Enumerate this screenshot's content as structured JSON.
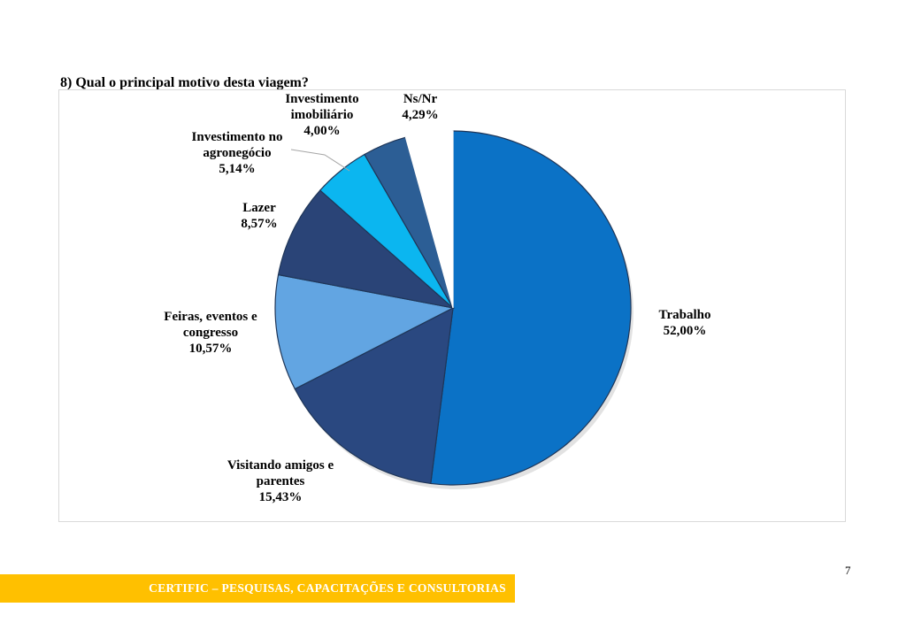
{
  "question": "8) Qual o principal motivo desta viagem?",
  "chart_data": {
    "type": "pie",
    "title": "",
    "slices": [
      {
        "label_lines": [
          "Trabalho"
        ],
        "value": 52.0,
        "value_label": "52,00%",
        "color": "#0b72c6"
      },
      {
        "label_lines": [
          "Visitando amigos e",
          "parentes"
        ],
        "value": 15.43,
        "value_label": "15,43%",
        "color": "#2a4880"
      },
      {
        "label_lines": [
          "Feiras, eventos e",
          "congresso"
        ],
        "value": 10.57,
        "value_label": "10,57%",
        "color": "#62a5e2"
      },
      {
        "label_lines": [
          "Lazer"
        ],
        "value": 8.57,
        "value_label": "8,57%",
        "color": "#2a4477"
      },
      {
        "label_lines": [
          "Investimento no",
          "agronegócio"
        ],
        "value": 5.14,
        "value_label": "5,14%",
        "color": "#0bb6f0"
      },
      {
        "label_lines": [
          "Investimento",
          "imobiliário"
        ],
        "value": 4.0,
        "value_label": "4,00%",
        "color": "#2c5e95"
      },
      {
        "label_lines": [
          "Ns/Nr"
        ],
        "value": 4.29,
        "value_label": "4,29%",
        "color": "#ffffff"
      }
    ]
  },
  "page_number": "7",
  "footer": "CERTIFIC – PESQUISAS, CAPACITAÇÕES E CONSULTORIAS"
}
